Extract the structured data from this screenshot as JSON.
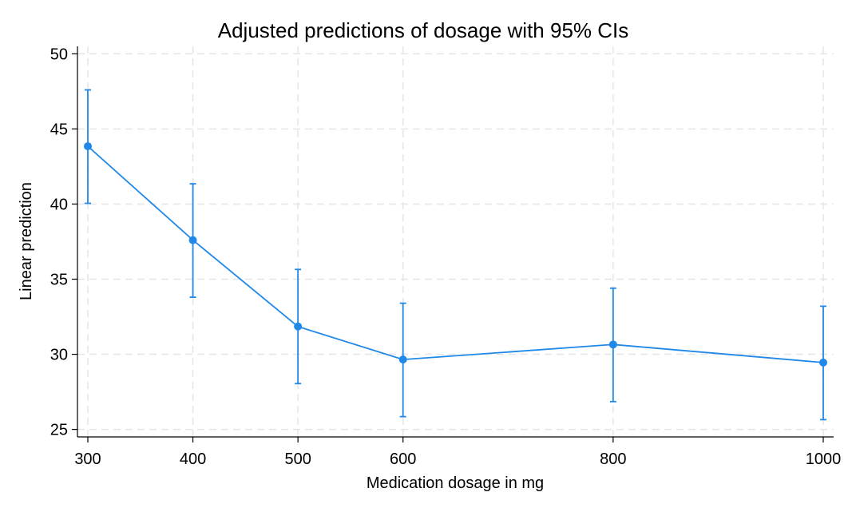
{
  "chart_data": {
    "type": "line",
    "title": "Adjusted predictions of dosage with 95% CIs",
    "xlabel": "Medication dosage in mg",
    "ylabel": "Linear prediction",
    "x": [
      300,
      400,
      500,
      600,
      800,
      1000
    ],
    "xticks": [
      "300",
      "400",
      "500",
      "600",
      "800",
      "1000"
    ],
    "yticks": [
      25,
      30,
      35,
      40,
      45,
      50
    ],
    "ylim": [
      24.5,
      50.5
    ],
    "series": [
      {
        "values": [
          43.85,
          37.6,
          31.85,
          29.65,
          30.65,
          29.45
        ],
        "ci_lower": [
          40.05,
          33.8,
          28.05,
          25.85,
          26.85,
          25.65
        ],
        "ci_upper": [
          47.6,
          41.35,
          35.65,
          33.4,
          34.4,
          33.2
        ]
      }
    ],
    "grid": true,
    "legend": "none",
    "color": "#1f88e8",
    "grid_color": "#e5e5e5"
  }
}
